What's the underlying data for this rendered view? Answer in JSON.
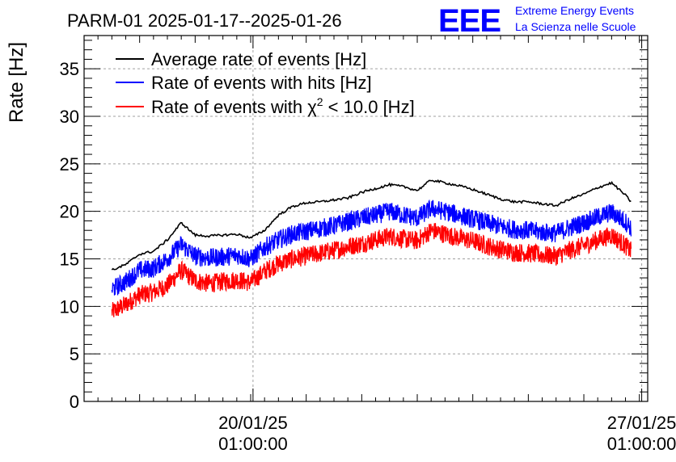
{
  "chart_data": {
    "type": "line",
    "title": "PARM-01 2025-01-17--2025-01-26",
    "ylabel": "Rate [Hz]",
    "xlabel": "",
    "ylim": [
      0,
      38.5
    ],
    "yticks": [
      0,
      5,
      10,
      15,
      20,
      25,
      30,
      35
    ],
    "grid": true,
    "legend_position": "top-left",
    "x_unit": "days since 2025-01-17 00:00",
    "xlim": [
      0.0,
      10.15
    ],
    "x_tick_labels": [
      {
        "x": 3.042,
        "line1": "20/01/25",
        "line2": "01:00:00"
      },
      {
        "x": 10.042,
        "line1": "27/01/25",
        "line2": "01:00:00"
      }
    ],
    "series": [
      {
        "name": "Average rate of events [Hz]",
        "color": "#000000",
        "style": "smooth",
        "x": [
          0.5,
          0.75,
          1.0,
          1.25,
          1.5,
          1.75,
          2.0,
          2.25,
          2.5,
          2.75,
          3.0,
          3.25,
          3.5,
          3.75,
          4.0,
          4.25,
          4.5,
          4.75,
          5.0,
          5.25,
          5.5,
          5.75,
          6.0,
          6.25,
          6.5,
          6.75,
          7.0,
          7.25,
          7.5,
          7.75,
          8.0,
          8.25,
          8.5,
          8.75,
          9.0,
          9.25,
          9.5,
          9.75,
          9.85
        ],
        "values": [
          13.8,
          14.4,
          15.5,
          15.8,
          17.0,
          18.8,
          17.5,
          17.4,
          17.5,
          17.6,
          17.2,
          18.0,
          19.6,
          20.5,
          20.9,
          21.0,
          21.2,
          21.4,
          22.0,
          22.4,
          22.8,
          22.6,
          22.2,
          23.3,
          23.0,
          22.7,
          22.3,
          21.8,
          21.3,
          21.0,
          21.0,
          20.8,
          20.6,
          21.3,
          21.8,
          22.5,
          23.0,
          21.7,
          21.0
        ]
      },
      {
        "name": "Rate of events with hits [Hz]",
        "color": "#0000ff",
        "style": "noisy",
        "noise": 2.0,
        "x": [
          0.5,
          0.75,
          1.0,
          1.25,
          1.5,
          1.75,
          2.0,
          2.25,
          2.5,
          2.75,
          3.0,
          3.25,
          3.5,
          3.75,
          4.0,
          4.25,
          4.5,
          4.75,
          5.0,
          5.25,
          5.5,
          5.75,
          6.0,
          6.25,
          6.5,
          6.75,
          7.0,
          7.25,
          7.5,
          7.75,
          8.0,
          8.25,
          8.5,
          8.75,
          9.0,
          9.25,
          9.5,
          9.75,
          9.85
        ],
        "values": [
          11.8,
          12.6,
          13.8,
          14.0,
          15.0,
          16.5,
          15.3,
          15.1,
          15.2,
          15.4,
          15.0,
          16.2,
          17.0,
          17.6,
          17.9,
          18.2,
          18.5,
          18.9,
          19.3,
          19.6,
          20.0,
          19.6,
          19.3,
          20.3,
          20.0,
          19.6,
          19.2,
          18.8,
          18.4,
          18.1,
          18.0,
          17.8,
          17.7,
          18.3,
          18.8,
          19.4,
          19.9,
          18.9,
          18.3
        ]
      },
      {
        "name": "Rate of events with χ² < 10.0 [Hz]",
        "color": "#ff0000",
        "style": "noisy",
        "noise": 2.0,
        "x": [
          0.5,
          0.75,
          1.0,
          1.25,
          1.5,
          1.75,
          2.0,
          2.25,
          2.5,
          2.75,
          3.0,
          3.25,
          3.5,
          3.75,
          4.0,
          4.25,
          4.5,
          4.75,
          5.0,
          5.25,
          5.5,
          5.75,
          6.0,
          6.25,
          6.5,
          6.75,
          7.0,
          7.25,
          7.5,
          7.75,
          8.0,
          8.25,
          8.5,
          8.75,
          9.0,
          9.25,
          9.5,
          9.75,
          9.85
        ],
        "values": [
          9.4,
          10.2,
          11.2,
          11.5,
          12.2,
          13.8,
          12.7,
          12.4,
          12.6,
          12.8,
          12.5,
          13.7,
          14.5,
          15.0,
          15.3,
          15.6,
          15.9,
          16.3,
          16.6,
          17.0,
          17.4,
          17.1,
          16.9,
          18.0,
          17.6,
          17.2,
          16.9,
          16.4,
          16.0,
          15.7,
          15.6,
          15.4,
          15.3,
          15.9,
          16.4,
          17.0,
          17.5,
          16.4,
          15.8
        ]
      }
    ],
    "legend_labels": [
      {
        "main": "Average rate of events [Hz]",
        "sup": ""
      },
      {
        "main": "Rate of events with hits [Hz]",
        "sup": ""
      },
      {
        "main": "Rate of events with χ",
        "sup": "2",
        "rest": " < 10.0 [Hz]"
      }
    ]
  },
  "logo": {
    "mark": "EEE",
    "line1": "Extreme Energy Events",
    "line2": "La Scienza nelle Scuole",
    "color": "#0000ff"
  }
}
